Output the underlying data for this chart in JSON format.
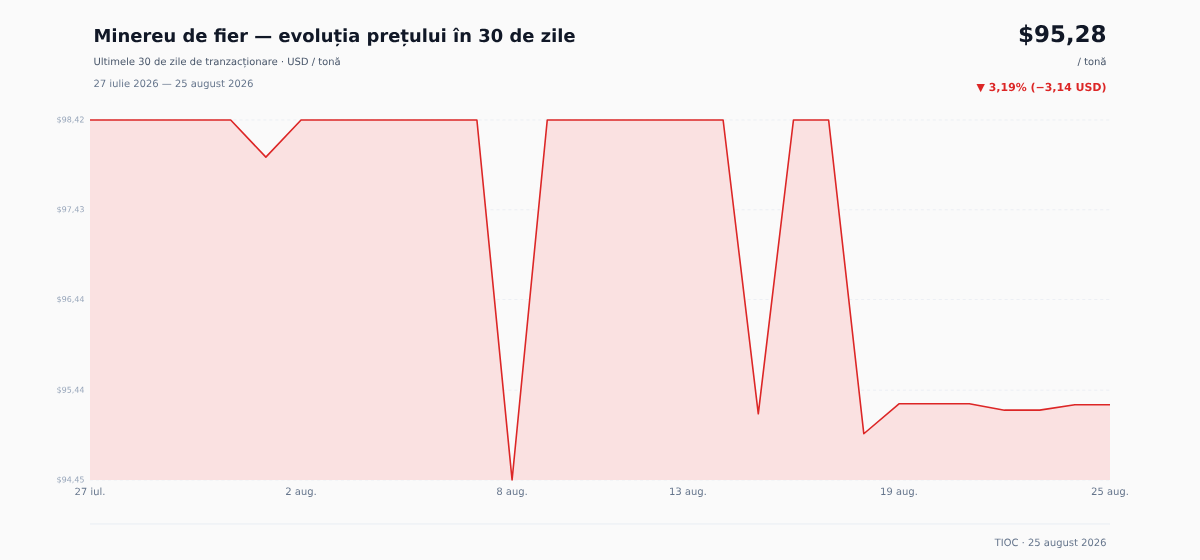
{
  "chart_data": {
    "type": "area",
    "title": "Minereu de fier — evoluția prețului în 30 de zile",
    "subtitle": "Ultimele 30 de zile de tranzacționare · USD / tonă",
    "annotations": [
      "27 iulie 2026 — 25 august 2026",
      "$95,28",
      "/ tonă",
      "▼ 3,19% (−3,14 USD)",
      "TIOC · 25 august 2026"
    ],
    "x": [
      "2026-07-27",
      "2026-07-28",
      "2026-07-29",
      "2026-07-30",
      "2026-07-31",
      "2026-08-01",
      "2026-08-02",
      "2026-08-03",
      "2026-08-04",
      "2026-08-05",
      "2026-08-06",
      "2026-08-07",
      "2026-08-08",
      "2026-08-09",
      "2026-08-10",
      "2026-08-11",
      "2026-08-12",
      "2026-08-13",
      "2026-08-14",
      "2026-08-15",
      "2026-08-16",
      "2026-08-17",
      "2026-08-18",
      "2026-08-19",
      "2026-08-20",
      "2026-08-21",
      "2026-08-22",
      "2026-08-23",
      "2026-08-24",
      "2026-08-25"
    ],
    "series": [
      {
        "color": "#dc2626",
        "values": [
          98.42,
          98.42,
          98.42,
          98.42,
          98.42,
          98.01,
          98.42,
          98.42,
          98.42,
          98.42,
          98.42,
          98.42,
          94.45,
          98.42,
          98.42,
          98.42,
          98.42,
          98.42,
          98.42,
          95.18,
          98.42,
          98.42,
          94.96,
          95.29,
          95.29,
          95.29,
          95.22,
          95.22,
          95.28,
          95.28
        ]
      }
    ],
    "xlim": [
      "2026-07-27",
      "2026-08-25"
    ],
    "xticks": [
      {
        "value": "2026-07-27",
        "label": "27 iul."
      },
      {
        "value": "2026-08-02",
        "label": "2 aug."
      },
      {
        "value": "2026-08-08",
        "label": "8 aug."
      },
      {
        "value": "2026-08-13",
        "label": "13 aug."
      },
      {
        "value": "2026-08-19",
        "label": "19 aug."
      },
      {
        "value": "2026-08-25",
        "label": "25 aug."
      }
    ],
    "ylim": [
      94.45,
      98.42
    ],
    "yticks": [
      {
        "value": 94.45,
        "label": "$94,45"
      },
      {
        "value": 95.44,
        "label": "$95,44"
      },
      {
        "value": 96.44,
        "label": "$96,44"
      },
      {
        "value": 97.43,
        "label": "$97,43"
      },
      {
        "value": 98.42,
        "label": "$98,42"
      }
    ],
    "grid": "y"
  }
}
